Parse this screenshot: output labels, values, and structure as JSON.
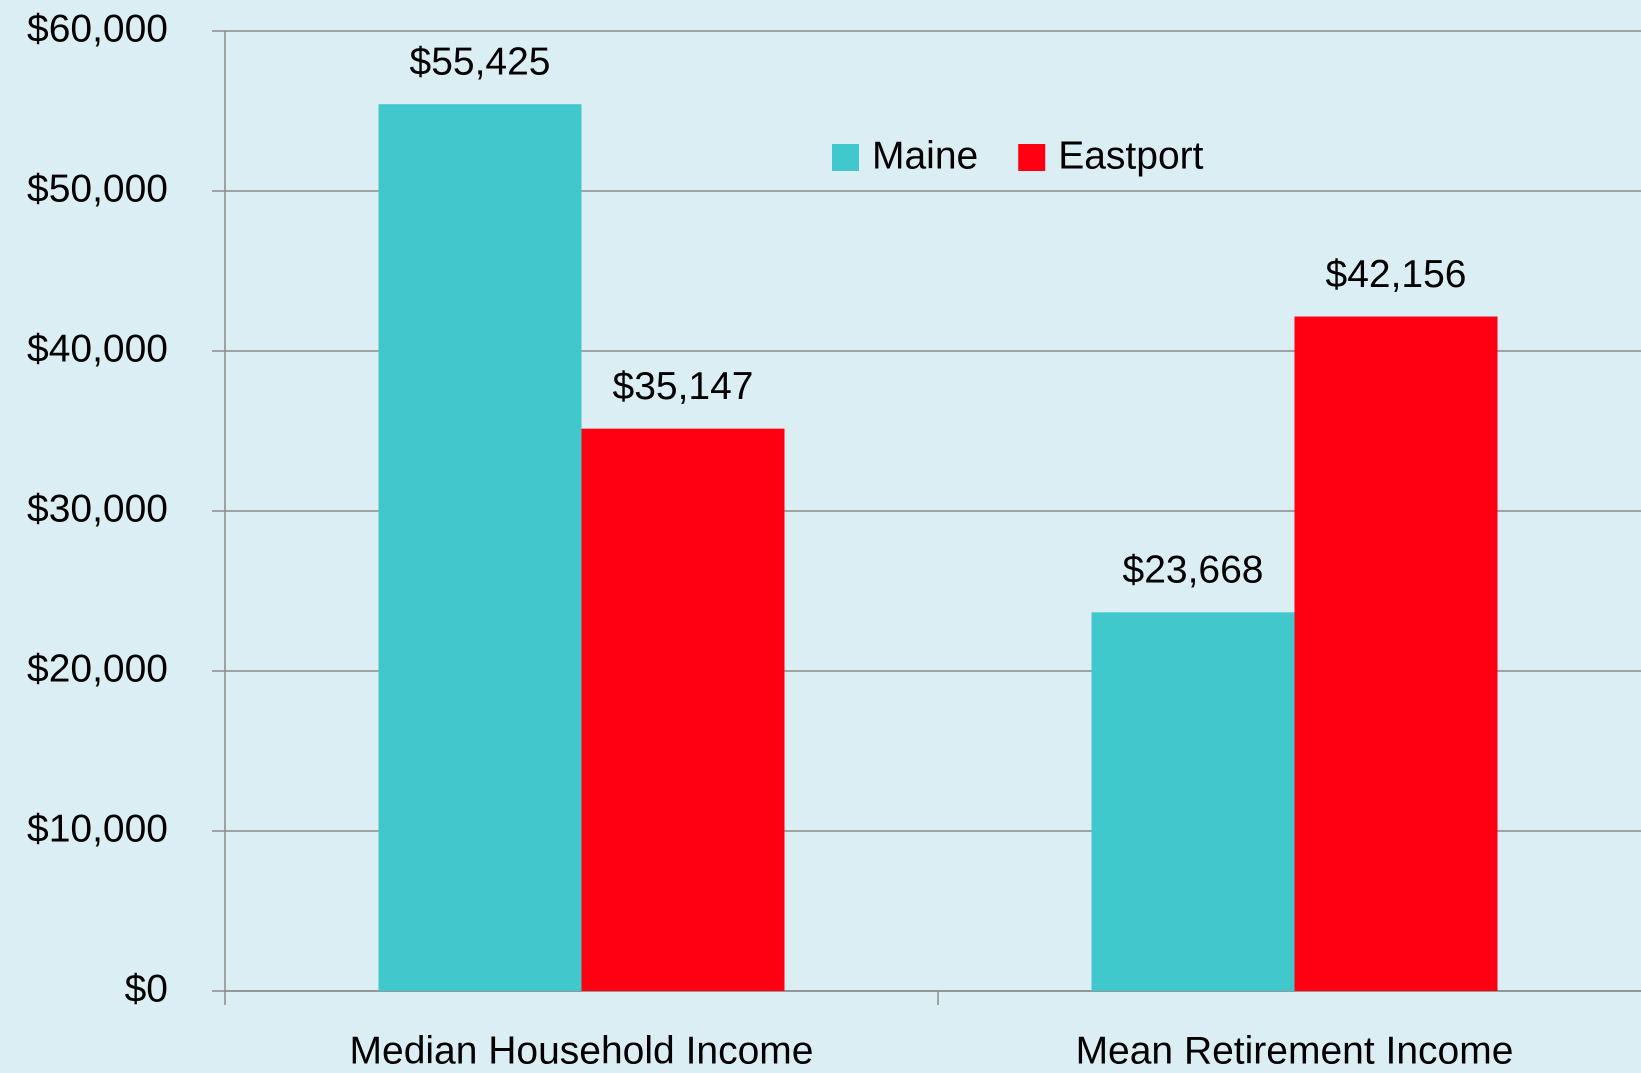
{
  "chart_data": {
    "type": "bar",
    "categories": [
      "Median Household Income",
      "Mean Retirement Income"
    ],
    "series": [
      {
        "name": "Maine",
        "color": "#40c8cc",
        "values": [
          55425,
          23668
        ],
        "value_labels": [
          "$55,425",
          "$23,668"
        ]
      },
      {
        "name": "Eastport",
        "color": "#ff0013",
        "values": [
          35147,
          42156
        ],
        "value_labels": [
          "$35,147",
          "$42,156"
        ]
      }
    ],
    "ylim": [
      0,
      60000
    ],
    "yticks": [
      {
        "value": 0,
        "label": "$0"
      },
      {
        "value": 10000,
        "label": "$10,000"
      },
      {
        "value": 20000,
        "label": "$20,000"
      },
      {
        "value": 30000,
        "label": "$30,000"
      },
      {
        "value": 40000,
        "label": "$40,000"
      },
      {
        "value": 50000,
        "label": "$50,000"
      },
      {
        "value": 60000,
        "label": "$60,000"
      }
    ],
    "grid": true
  }
}
